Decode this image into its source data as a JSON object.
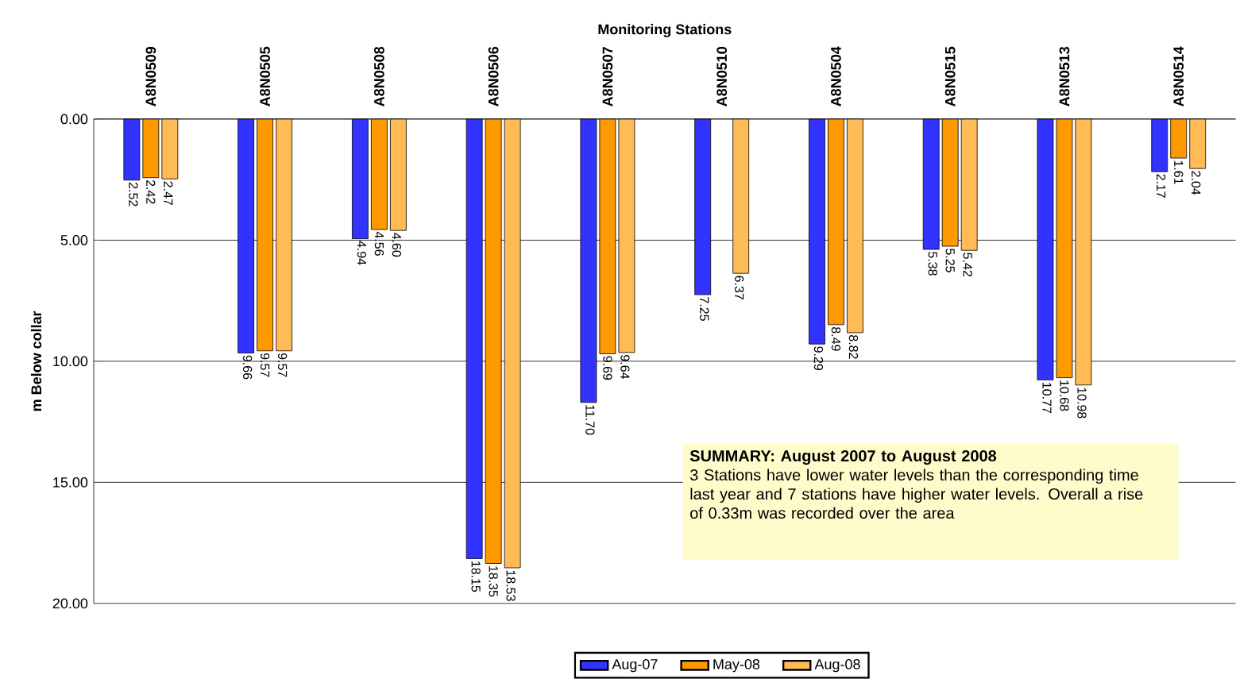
{
  "chart_data": {
    "type": "bar",
    "xlabel": "Monitoring Stations",
    "ylabel": "m Below collar",
    "categories": [
      "A8N0509",
      "A8N0505",
      "A8N0508",
      "A8N0506",
      "A8N0507",
      "A8N0510",
      "A8N0504",
      "A8N0515",
      "A8N0513",
      "A8N0514"
    ],
    "series": [
      {
        "name": "Aug-07",
        "color": "#3333ff",
        "values": [
          2.52,
          9.66,
          4.94,
          18.15,
          11.7,
          7.25,
          9.29,
          5.38,
          10.77,
          2.17
        ],
        "value_labels": [
          "2.52",
          "9.66",
          "4.94",
          "18.15",
          "11.70",
          "7.25",
          "9.29",
          "5.38",
          "10.77",
          "2.17"
        ]
      },
      {
        "name": "May-08",
        "color": "#ff9900",
        "values": [
          2.42,
          9.57,
          4.56,
          18.35,
          9.69,
          null,
          8.49,
          5.25,
          10.68,
          1.61
        ],
        "value_labels": [
          "2.42",
          "9.57",
          "4.56",
          "18.35",
          "9.69",
          null,
          "8.49",
          "5.25",
          "10.68",
          "1.61"
        ]
      },
      {
        "name": "Aug-08",
        "color": "#ffbb55",
        "values": [
          2.47,
          9.57,
          4.6,
          18.53,
          9.64,
          6.37,
          8.82,
          5.42,
          10.98,
          2.04
        ],
        "value_labels": [
          "2.47",
          "9.57",
          "4.60",
          "18.53",
          "9.64",
          "6.37",
          "8.82",
          "5.42",
          "10.98",
          "2.04"
        ]
      }
    ],
    "ylim": [
      20,
      0
    ],
    "yticks": [
      {
        "value": 0,
        "label": "0.00"
      },
      {
        "value": 5,
        "label": "5.00"
      },
      {
        "value": 10,
        "label": "10.00"
      },
      {
        "value": 15,
        "label": "15.00"
      },
      {
        "value": 20,
        "label": "20.00"
      }
    ],
    "grid": "y",
    "legend": "bottom",
    "annotations": [
      "SUMMARY: August 2007 to August 2008",
      "3 Stations  have lower water  levels than the corresponding time last year and 7 stations have higher water levels. Overall a rise of 0.33m was recorded over the area"
    ]
  }
}
